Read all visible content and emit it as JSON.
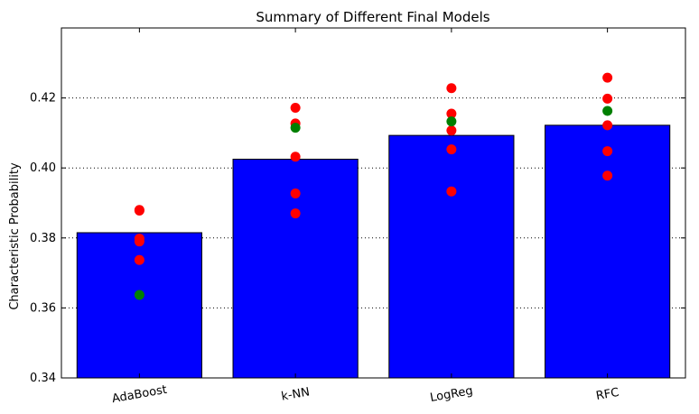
{
  "chart_data": {
    "type": "bar",
    "title": "Summary of Different Final Models",
    "xlabel": "",
    "ylabel": "Characteristic Probability",
    "ylim": [
      0.34,
      0.44
    ],
    "yticks": [
      "0.34",
      "0.36",
      "0.38",
      "0.40",
      "0.42"
    ],
    "grid": "y-dotted",
    "categories": [
      "AdaBoost",
      "k-NN",
      "LogReg",
      "RFC"
    ],
    "values": [
      0.3815,
      0.4025,
      0.4093,
      0.4122
    ],
    "bar_color": "#0000ff",
    "points_red": [
      [
        0.388,
        0.3878,
        0.3798,
        0.379,
        0.3737
      ],
      [
        0.4172,
        0.4127,
        0.4032,
        0.3927,
        0.387
      ],
      [
        0.4228,
        0.4155,
        0.4107,
        0.4053,
        0.3933
      ],
      [
        0.4258,
        0.4198,
        0.4122,
        0.4048,
        0.3978
      ]
    ],
    "points_green": [
      0.3637,
      0.4115,
      0.4133,
      0.4163
    ],
    "red_color": "#ff0000",
    "green_color": "#007f00"
  }
}
